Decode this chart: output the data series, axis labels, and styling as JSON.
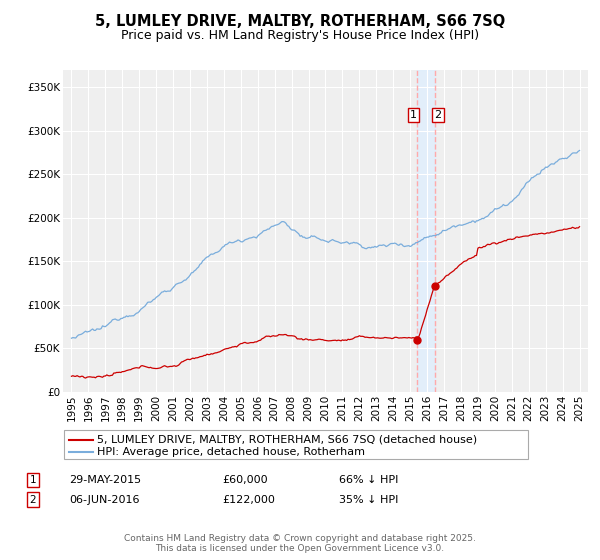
{
  "title": "5, LUMLEY DRIVE, MALTBY, ROTHERHAM, S66 7SQ",
  "subtitle": "Price paid vs. HM Land Registry's House Price Index (HPI)",
  "legend_label_red": "5, LUMLEY DRIVE, MALTBY, ROTHERHAM, S66 7SQ (detached house)",
  "legend_label_blue": "HPI: Average price, detached house, Rotherham",
  "annotation1_date": "29-MAY-2015",
  "annotation1_price": "£60,000",
  "annotation1_hpi": "66% ↓ HPI",
  "annotation2_date": "06-JUN-2016",
  "annotation2_price": "£122,000",
  "annotation2_hpi": "35% ↓ HPI",
  "vline1_x": 2015.42,
  "vline2_x": 2016.44,
  "dot1_x": 2015.42,
  "dot1_y": 60000,
  "dot2_x": 2016.44,
  "dot2_y": 122000,
  "ylim": [
    0,
    370000
  ],
  "xlim": [
    1994.5,
    2025.5
  ],
  "yticks": [
    0,
    50000,
    100000,
    150000,
    200000,
    250000,
    300000,
    350000
  ],
  "ytick_labels": [
    "£0",
    "£50K",
    "£100K",
    "£150K",
    "£200K",
    "£250K",
    "£300K",
    "£350K"
  ],
  "xticks": [
    1995,
    1996,
    1997,
    1998,
    1999,
    2000,
    2001,
    2002,
    2003,
    2004,
    2005,
    2006,
    2007,
    2008,
    2009,
    2010,
    2011,
    2012,
    2013,
    2014,
    2015,
    2016,
    2017,
    2018,
    2019,
    2020,
    2021,
    2022,
    2023,
    2024,
    2025
  ],
  "chart_bg": "#efefef",
  "grid_color": "#ffffff",
  "fig_bg": "#ffffff",
  "red_color": "#cc0000",
  "blue_color": "#7aaddc",
  "vline_color": "#ffaaaa",
  "vband_color": "#ddeeff",
  "title_fontsize": 10.5,
  "subtitle_fontsize": 9,
  "tick_fontsize": 7.5,
  "legend_fontsize": 8,
  "annotation_fontsize": 8,
  "footer_fontsize": 6.5,
  "footer_text": "Contains HM Land Registry data © Crown copyright and database right 2025.\nThis data is licensed under the Open Government Licence v3.0."
}
